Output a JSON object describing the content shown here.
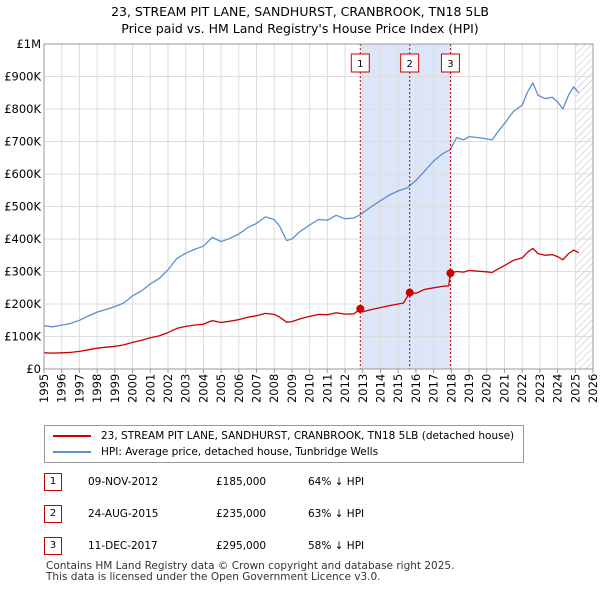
{
  "chart_data": {
    "type": "line",
    "title": "23, STREAM PIT LANE, SANDHURST, CRANBROOK, TN18 5LB",
    "subtitle": "Price paid vs. HM Land Registry's House Price Index (HPI)",
    "xlabel": "",
    "ylabel": "",
    "xlim": [
      1995,
      2026
    ],
    "ylim": [
      0,
      1000000
    ],
    "x_ticks": [
      "1995",
      "1996",
      "1997",
      "1998",
      "1999",
      "2000",
      "2001",
      "2002",
      "2003",
      "2004",
      "2005",
      "2006",
      "2007",
      "2008",
      "2009",
      "2010",
      "2011",
      "2012",
      "2013",
      "2014",
      "2015",
      "2016",
      "2017",
      "2018",
      "2019",
      "2020",
      "2021",
      "2022",
      "2023",
      "2024",
      "2025",
      "2026"
    ],
    "y_ticks": [
      {
        "value": 0,
        "label": "£0"
      },
      {
        "value": 100000,
        "label": "£100K"
      },
      {
        "value": 200000,
        "label": "£200K"
      },
      {
        "value": 300000,
        "label": "£300K"
      },
      {
        "value": 400000,
        "label": "£400K"
      },
      {
        "value": 500000,
        "label": "£500K"
      },
      {
        "value": 600000,
        "label": "£600K"
      },
      {
        "value": 700000,
        "label": "£700K"
      },
      {
        "value": 800000,
        "label": "£800K"
      },
      {
        "value": 900000,
        "label": "£900K"
      },
      {
        "value": 1000000,
        "label": "£1M"
      }
    ],
    "grid": true,
    "shaded_range": [
      2012.86,
      2017.95
    ],
    "future_hatch_from": 2025.0,
    "series": [
      {
        "name": "23, STREAM PIT LANE, SANDHURST, CRANBROOK, TN18 5LB (detached house)",
        "color": "#cc0000",
        "points": [
          [
            1995.0,
            50000
          ],
          [
            1995.5,
            49000
          ],
          [
            1996.0,
            50000
          ],
          [
            1996.5,
            51000
          ],
          [
            1997.0,
            54000
          ],
          [
            1997.5,
            59000
          ],
          [
            1998.0,
            64000
          ],
          [
            1998.5,
            67000
          ],
          [
            1999.0,
            70000
          ],
          [
            1999.5,
            74000
          ],
          [
            2000.0,
            82000
          ],
          [
            2000.5,
            88000
          ],
          [
            2001.0,
            96000
          ],
          [
            2001.5,
            102000
          ],
          [
            2002.0,
            112000
          ],
          [
            2002.5,
            125000
          ],
          [
            2003.0,
            131000
          ],
          [
            2003.5,
            135000
          ],
          [
            2004.0,
            138000
          ],
          [
            2004.5,
            149000
          ],
          [
            2005.0,
            143000
          ],
          [
            2005.5,
            147000
          ],
          [
            2006.0,
            152000
          ],
          [
            2006.5,
            159000
          ],
          [
            2007.0,
            164000
          ],
          [
            2007.5,
            171000
          ],
          [
            2008.0,
            168000
          ],
          [
            2008.3,
            160000
          ],
          [
            2008.7,
            144000
          ],
          [
            2009.0,
            146000
          ],
          [
            2009.5,
            155000
          ],
          [
            2010.0,
            162000
          ],
          [
            2010.5,
            168000
          ],
          [
            2011.0,
            167000
          ],
          [
            2011.5,
            173000
          ],
          [
            2012.0,
            169000
          ],
          [
            2012.5,
            170000
          ],
          [
            2012.86,
            185000
          ],
          [
            2013.0,
            176000
          ],
          [
            2013.5,
            183000
          ],
          [
            2014.0,
            189000
          ],
          [
            2014.5,
            195000
          ],
          [
            2015.0,
            200000
          ],
          [
            2015.3,
            203000
          ],
          [
            2015.65,
            235000
          ],
          [
            2016.0,
            233000
          ],
          [
            2016.5,
            245000
          ],
          [
            2017.0,
            250000
          ],
          [
            2017.5,
            254000
          ],
          [
            2017.85,
            256000
          ],
          [
            2017.95,
            295000
          ],
          [
            2018.3,
            300000
          ],
          [
            2018.7,
            298000
          ],
          [
            2019.0,
            303000
          ],
          [
            2019.5,
            301000
          ],
          [
            2020.0,
            299000
          ],
          [
            2020.3,
            297000
          ],
          [
            2020.7,
            310000
          ],
          [
            2021.0,
            318000
          ],
          [
            2021.5,
            334000
          ],
          [
            2022.0,
            342000
          ],
          [
            2022.3,
            359000
          ],
          [
            2022.6,
            371000
          ],
          [
            2022.9,
            355000
          ],
          [
            2023.3,
            350000
          ],
          [
            2023.7,
            352000
          ],
          [
            2024.0,
            346000
          ],
          [
            2024.3,
            336000
          ],
          [
            2024.6,
            354000
          ],
          [
            2024.9,
            366000
          ],
          [
            2025.2,
            358000
          ]
        ]
      },
      {
        "name": "HPI: Average price, detached house, Tunbridge Wells",
        "color": "#5b8fd1",
        "points": [
          [
            1995.0,
            133000
          ],
          [
            1995.5,
            130000
          ],
          [
            1996.0,
            135000
          ],
          [
            1996.5,
            140000
          ],
          [
            1997.0,
            150000
          ],
          [
            1997.5,
            163000
          ],
          [
            1998.0,
            175000
          ],
          [
            1998.5,
            183000
          ],
          [
            1999.0,
            192000
          ],
          [
            1999.5,
            203000
          ],
          [
            2000.0,
            225000
          ],
          [
            2000.5,
            240000
          ],
          [
            2001.0,
            262000
          ],
          [
            2001.5,
            278000
          ],
          [
            2002.0,
            305000
          ],
          [
            2002.5,
            340000
          ],
          [
            2003.0,
            356000
          ],
          [
            2003.5,
            368000
          ],
          [
            2004.0,
            378000
          ],
          [
            2004.5,
            405000
          ],
          [
            2005.0,
            392000
          ],
          [
            2005.5,
            402000
          ],
          [
            2006.0,
            415000
          ],
          [
            2006.5,
            435000
          ],
          [
            2007.0,
            448000
          ],
          [
            2007.5,
            468000
          ],
          [
            2008.0,
            460000
          ],
          [
            2008.3,
            440000
          ],
          [
            2008.7,
            395000
          ],
          [
            2009.0,
            400000
          ],
          [
            2009.5,
            425000
          ],
          [
            2010.0,
            443000
          ],
          [
            2010.5,
            460000
          ],
          [
            2011.0,
            458000
          ],
          [
            2011.5,
            473000
          ],
          [
            2012.0,
            462000
          ],
          [
            2012.5,
            465000
          ],
          [
            2012.86,
            475000
          ],
          [
            2013.0,
            481000
          ],
          [
            2013.5,
            500000
          ],
          [
            2014.0,
            518000
          ],
          [
            2014.5,
            535000
          ],
          [
            2015.0,
            548000
          ],
          [
            2015.5,
            557000
          ],
          [
            2016.0,
            580000
          ],
          [
            2016.5,
            610000
          ],
          [
            2017.0,
            640000
          ],
          [
            2017.5,
            662000
          ],
          [
            2017.95,
            675000
          ],
          [
            2018.3,
            712000
          ],
          [
            2018.7,
            705000
          ],
          [
            2019.0,
            715000
          ],
          [
            2019.5,
            712000
          ],
          [
            2020.0,
            708000
          ],
          [
            2020.3,
            705000
          ],
          [
            2020.7,
            735000
          ],
          [
            2021.0,
            755000
          ],
          [
            2021.5,
            792000
          ],
          [
            2022.0,
            812000
          ],
          [
            2022.3,
            852000
          ],
          [
            2022.6,
            880000
          ],
          [
            2022.9,
            842000
          ],
          [
            2023.3,
            832000
          ],
          [
            2023.7,
            836000
          ],
          [
            2024.0,
            822000
          ],
          [
            2024.3,
            800000
          ],
          [
            2024.6,
            840000
          ],
          [
            2024.9,
            868000
          ],
          [
            2025.2,
            850000
          ]
        ]
      }
    ],
    "transactions": [
      {
        "num": "1",
        "x": 2012.86,
        "value": 185000
      },
      {
        "num": "2",
        "x": 2015.65,
        "value": 235000
      },
      {
        "num": "3",
        "x": 2017.95,
        "value": 295000
      }
    ]
  },
  "legend": {
    "property": "23, STREAM PIT LANE, SANDHURST, CRANBROOK, TN18 5LB (detached house)",
    "hpi": "HPI: Average price, detached house, Tunbridge Wells"
  },
  "sales": [
    {
      "num": "1",
      "date": "09-NOV-2012",
      "price": "£185,000",
      "relation": "64% ↓ HPI"
    },
    {
      "num": "2",
      "date": "24-AUG-2015",
      "price": "£235,000",
      "relation": "63% ↓ HPI"
    },
    {
      "num": "3",
      "date": "11-DEC-2017",
      "price": "£295,000",
      "relation": "58% ↓ HPI"
    }
  ],
  "footer": {
    "line1": "Contains HM Land Registry data © Crown copyright and database right 2025.",
    "line2": "This data is licensed under the Open Government Licence v3.0."
  }
}
